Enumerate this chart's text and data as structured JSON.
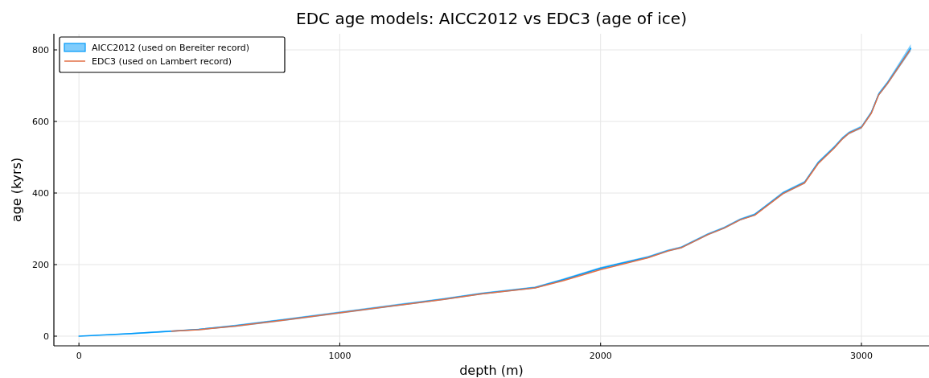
{
  "chart_data": {
    "type": "line",
    "title": "EDC age models: AICC2012 vs EDC3 (age of ice)",
    "xlabel": "depth (m)",
    "ylabel": "age (kyrs)",
    "xlim": [
      -96,
      3259
    ],
    "ylim": [
      -27,
      845
    ],
    "xticks": [
      0,
      1000,
      2000,
      3000
    ],
    "yticks": [
      0,
      200,
      400,
      600,
      800
    ],
    "grid": true,
    "legend": "top left",
    "series": [
      {
        "name": "AICC2012 (used on Bereiter record)",
        "color": "#009af9",
        "x": [
          0,
          200,
          356,
          460,
          600,
          800,
          1000,
          1200,
          1400,
          1543,
          1749,
          1857,
          2000,
          2182,
          2258,
          2309,
          2412,
          2474,
          2535,
          2591,
          2699,
          2782,
          2834,
          2896,
          2927,
          2952,
          3000,
          3038,
          3066,
          3100,
          3189
        ],
        "values": [
          0,
          7,
          14,
          19,
          29,
          47,
          66,
          85,
          104,
          119,
          136,
          158,
          190,
          221,
          239,
          248,
          285,
          303,
          326,
          340,
          400,
          430,
          485,
          528,
          553,
          568,
          584,
          625,
          676,
          708,
          804
        ],
        "lower": [
          0,
          5,
          12,
          17,
          26,
          44,
          63,
          82,
          101,
          116,
          133,
          155,
          187,
          218,
          236,
          245,
          282,
          300,
          323,
          337,
          396,
          426,
          481,
          524,
          549,
          564,
          580,
          620,
          671,
          703,
          796
        ],
        "upper": [
          0,
          9,
          16,
          21,
          32,
          50,
          69,
          88,
          107,
          122,
          139,
          161,
          193,
          224,
          242,
          251,
          288,
          306,
          329,
          343,
          404,
          434,
          489,
          532,
          557,
          572,
          588,
          630,
          681,
          713,
          816
        ]
      },
      {
        "name": "EDC3 (used on Lambert record)",
        "color": "#e26f46",
        "x": [
          356,
          460,
          600,
          800,
          1000,
          1200,
          1400,
          1543,
          1749,
          1857,
          2000,
          2182,
          2258,
          2309,
          2412,
          2474,
          2535,
          2591,
          2699,
          2782,
          2834,
          2896,
          2927,
          2952,
          3000,
          3038,
          3066,
          3100,
          3185
        ],
        "values": [
          14,
          18,
          28,
          46,
          65,
          84,
          103,
          118,
          135,
          155,
          186,
          219,
          238,
          247,
          284,
          302,
          325,
          338,
          398,
          428,
          482,
          526,
          551,
          567,
          583,
          623,
          674,
          706,
          798
        ]
      }
    ]
  }
}
